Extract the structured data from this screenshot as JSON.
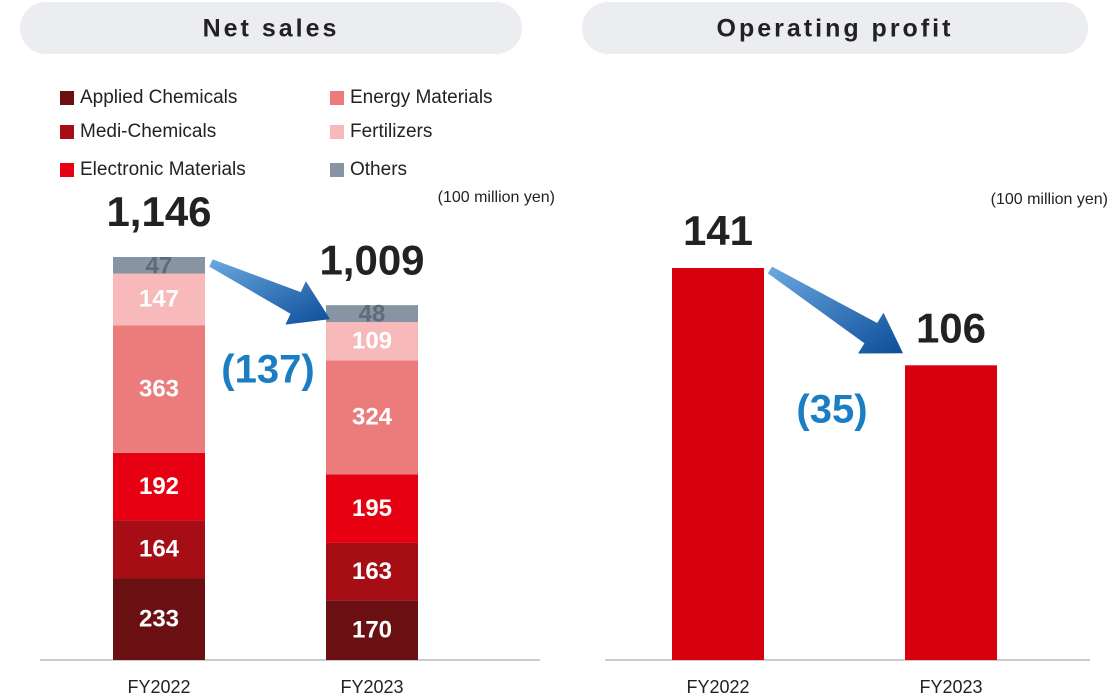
{
  "chart_data": [
    {
      "type": "stacked_bar",
      "title": "Net sales",
      "unit": "(100 million yen)",
      "categories": [
        "FY2022",
        "FY2023"
      ],
      "series": [
        {
          "name": "Applied Chemicals",
          "color": "#6b1012",
          "values": [
            233,
            170
          ]
        },
        {
          "name": "Medi-Chemicals",
          "color": "#a60d14",
          "values": [
            164,
            163
          ]
        },
        {
          "name": "Electronic Materials",
          "color": "#e60012",
          "values": [
            192,
            195
          ]
        },
        {
          "name": "Energy Materials",
          "color": "#ec7b7c",
          "values": [
            363,
            324
          ]
        },
        {
          "name": "Fertilizers",
          "color": "#f7b9b9",
          "values": [
            147,
            109
          ]
        },
        {
          "name": "Others",
          "color": "#8794a3",
          "values": [
            47,
            48
          ]
        }
      ],
      "totals": [
        1146,
        1009
      ],
      "total_labels": [
        "1,146",
        "1,009"
      ],
      "change": {
        "value": -137,
        "label": "(137)"
      }
    },
    {
      "type": "bar",
      "title": "Operating profit",
      "unit": "(100 million yen)",
      "categories": [
        "FY2022",
        "FY2023"
      ],
      "values": [
        141,
        106
      ],
      "color": "#d7000f",
      "change": {
        "value": -35,
        "label": "(35)"
      }
    }
  ]
}
